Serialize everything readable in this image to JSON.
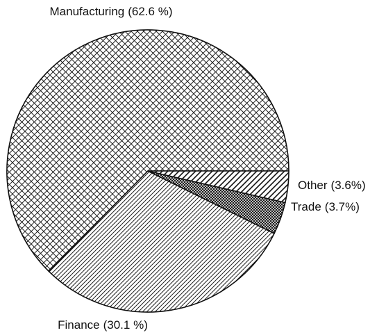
{
  "chart_data": {
    "type": "pie",
    "categories": [
      "Manufacturing",
      "Finance",
      "Trade",
      "Other"
    ],
    "values": [
      62.6,
      30.1,
      3.7,
      3.6
    ],
    "value_labels": [
      "(62.6 %)",
      "(30.1 %)",
      "(3.7%)",
      "(3.6%)"
    ]
  }
}
